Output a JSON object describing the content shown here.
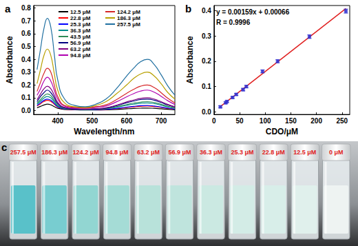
{
  "chart_data": [
    {
      "type": "line",
      "title": "a",
      "xlabel": "Wavelength/nm",
      "ylabel": "Absorbance",
      "x": [
        340,
        350,
        360,
        370,
        380,
        390,
        400,
        420,
        450,
        480,
        510,
        540,
        570,
        600,
        620,
        640,
        660,
        680,
        700,
        720,
        740
      ],
      "series": [
        {
          "name": "12.5 μM",
          "color": "#000000",
          "values": [
            0.022,
            0.033,
            0.044,
            0.05,
            0.045,
            0.031,
            0.018,
            0.009,
            0.006,
            0.005,
            0.005,
            0.006,
            0.009,
            0.014,
            0.017,
            0.019,
            0.02,
            0.018,
            0.014,
            0.01,
            0.006
          ]
        },
        {
          "name": "22.8 μM",
          "color": "#ff0000",
          "values": [
            0.036,
            0.053,
            0.071,
            0.08,
            0.072,
            0.05,
            0.028,
            0.012,
            0.008,
            0.006,
            0.007,
            0.009,
            0.015,
            0.024,
            0.029,
            0.033,
            0.035,
            0.032,
            0.025,
            0.017,
            0.011
          ]
        },
        {
          "name": "25.3 μM",
          "color": "#0000ff",
          "values": [
            0.04,
            0.06,
            0.08,
            0.09,
            0.081,
            0.056,
            0.031,
            0.013,
            0.009,
            0.007,
            0.008,
            0.01,
            0.017,
            0.027,
            0.033,
            0.038,
            0.04,
            0.036,
            0.028,
            0.019,
            0.012
          ]
        },
        {
          "name": "36.3 μM",
          "color": "#008b8b",
          "values": [
            0.05,
            0.073,
            0.098,
            0.11,
            0.1,
            0.068,
            0.038,
            0.016,
            0.01,
            0.008,
            0.01,
            0.014,
            0.026,
            0.041,
            0.05,
            0.057,
            0.06,
            0.054,
            0.042,
            0.029,
            0.018
          ]
        },
        {
          "name": "43.5 μM",
          "color": "#2e8b57",
          "values": [
            0.058,
            0.086,
            0.115,
            0.13,
            0.117,
            0.08,
            0.045,
            0.018,
            0.012,
            0.01,
            0.012,
            0.016,
            0.03,
            0.047,
            0.058,
            0.066,
            0.07,
            0.063,
            0.049,
            0.033,
            0.021
          ]
        },
        {
          "name": "56.9 μM",
          "color": "#000080",
          "values": [
            0.07,
            0.11,
            0.14,
            0.16,
            0.14,
            0.1,
            0.055,
            0.022,
            0.013,
            0.01,
            0.013,
            0.02,
            0.038,
            0.061,
            0.074,
            0.086,
            0.09,
            0.081,
            0.063,
            0.043,
            0.027
          ]
        },
        {
          "name": "63.2 μM",
          "color": "#800080",
          "values": [
            0.085,
            0.13,
            0.17,
            0.19,
            0.17,
            0.12,
            0.065,
            0.025,
            0.015,
            0.012,
            0.015,
            0.022,
            0.042,
            0.068,
            0.082,
            0.095,
            0.1,
            0.09,
            0.07,
            0.048,
            0.03
          ]
        },
        {
          "name": "94.8 μM",
          "color": "#b000b0",
          "values": [
            0.12,
            0.17,
            0.23,
            0.26,
            0.23,
            0.16,
            0.09,
            0.035,
            0.02,
            0.02,
            0.025,
            0.036,
            0.068,
            0.108,
            0.132,
            0.152,
            0.16,
            0.144,
            0.112,
            0.076,
            0.048
          ]
        },
        {
          "name": "124.2 μM",
          "color": "#d62728",
          "values": [
            0.15,
            0.22,
            0.29,
            0.33,
            0.3,
            0.2,
            0.11,
            0.04,
            0.025,
            0.02,
            0.03,
            0.045,
            0.085,
            0.135,
            0.165,
            0.19,
            0.2,
            0.18,
            0.14,
            0.095,
            0.06
          ]
        },
        {
          "name": "186.3 μM",
          "color": "#b8a000",
          "values": [
            0.21,
            0.32,
            0.43,
            0.48,
            0.43,
            0.29,
            0.16,
            0.06,
            0.03,
            0.025,
            0.04,
            0.07,
            0.13,
            0.2,
            0.25,
            0.285,
            0.3,
            0.27,
            0.21,
            0.14,
            0.09
          ]
        },
        {
          "name": "257.5 μM",
          "color": "#1f6fa0",
          "values": [
            0.32,
            0.48,
            0.64,
            0.72,
            0.65,
            0.44,
            0.24,
            0.09,
            0.04,
            0.03,
            0.05,
            0.09,
            0.17,
            0.27,
            0.33,
            0.38,
            0.4,
            0.36,
            0.28,
            0.19,
            0.12
          ]
        }
      ],
      "xlim": [
        330,
        740
      ],
      "xticks": [
        400,
        500,
        600,
        700
      ],
      "ylim": [
        -0.03,
        0.82
      ],
      "yticks": [
        {
          "value": 0,
          "label": "0.0"
        },
        {
          "value": 0.1,
          "label": "0.1"
        },
        {
          "value": 0.2,
          "label": "0.2"
        },
        {
          "value": 0.3,
          "label": "0.3"
        },
        {
          "value": 0.4,
          "label": "0.4"
        },
        {
          "value": 0.5,
          "label": "0.5"
        },
        {
          "value": 0.6,
          "label": "0.6"
        },
        {
          "value": 0.7,
          "label": "0.7"
        },
        {
          "value": 0.8,
          "label": "0.8"
        }
      ],
      "legend": "top",
      "grid": false
    },
    {
      "type": "scatter",
      "title": "b",
      "xlabel": "CDO/μM",
      "ylabel": "Absorbance",
      "x": [
        12.5,
        22.8,
        25.3,
        36.3,
        43.5,
        56.9,
        63.2,
        94.8,
        124.2,
        186.3,
        257.5
      ],
      "values": [
        0.02,
        0.036,
        0.041,
        0.057,
        0.069,
        0.088,
        0.1,
        0.16,
        0.2,
        0.297,
        0.398
      ],
      "errors": [
        0.004,
        0.004,
        0.004,
        0.004,
        0.004,
        0.005,
        0.005,
        0.006,
        0.006,
        0.007,
        0.008
      ],
      "color": "#3030d0",
      "marker": "square",
      "fit": {
        "x": [
          12.5,
          257.5
        ],
        "values": [
          0.021,
          0.408
        ],
        "color": "#e02020"
      },
      "annotations": [
        "y = 0.00159x + 0.00066",
        "R = 0.9996"
      ],
      "xlim": [
        0,
        265
      ],
      "xticks": [
        0,
        50,
        100,
        150,
        200,
        250
      ],
      "ylim": [
        -0.01,
        0.42
      ],
      "yticks": [
        {
          "value": 0,
          "label": "0.0"
        },
        {
          "value": 0.1,
          "label": "0.1"
        },
        {
          "value": 0.2,
          "label": "0.2"
        },
        {
          "value": 0.3,
          "label": "0.3"
        },
        {
          "value": 0.4,
          "label": "0.4"
        }
      ],
      "grid": false
    }
  ],
  "photo": {
    "title": "c",
    "vials": [
      {
        "label": "257.5 μM",
        "color": "#59c1c9"
      },
      {
        "label": "186.3 μM",
        "color": "#78cdd0"
      },
      {
        "label": "124.2 μM",
        "color": "#92d6d2"
      },
      {
        "label": "94.8 μM",
        "color": "#a5dcd6"
      },
      {
        "label": "63.2 μM",
        "color": "#b8e2da"
      },
      {
        "label": "56.9 μM",
        "color": "#bfe4dd"
      },
      {
        "label": "36.3 μM",
        "color": "#cbe9e2"
      },
      {
        "label": "25.3 μM",
        "color": "#d3ece6"
      },
      {
        "label": "22.8 μM",
        "color": "#d8eee9"
      },
      {
        "label": "12.5 μM",
        "color": "#e0f0ec"
      },
      {
        "label": "0 μM",
        "color": "#eef3f2"
      }
    ]
  }
}
